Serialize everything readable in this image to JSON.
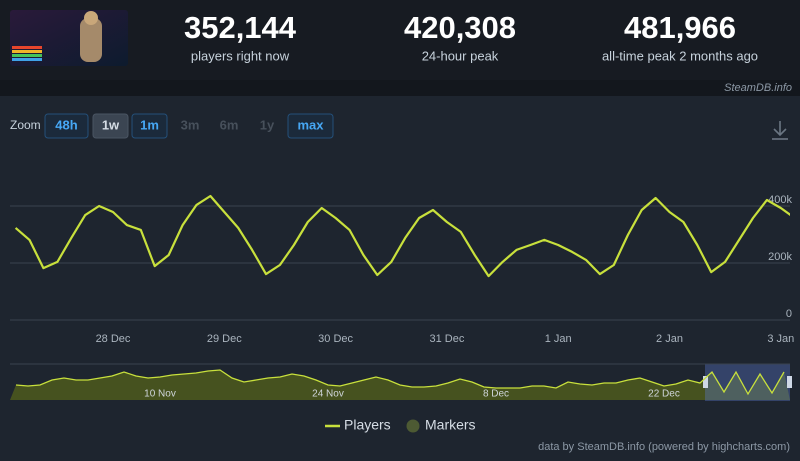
{
  "header": {
    "stats": [
      {
        "value": "352,144",
        "label": "players right now"
      },
      {
        "value": "420,308",
        "label": "24-hour peak"
      },
      {
        "value": "481,966",
        "label": "all-time peak 2 months ago"
      }
    ],
    "source": "SteamDB.info"
  },
  "zoom": {
    "label": "Zoom",
    "buttons": [
      {
        "label": "48h",
        "state": "enabled"
      },
      {
        "label": "1w",
        "state": "active"
      },
      {
        "label": "1m",
        "state": "enabled"
      },
      {
        "label": "3m",
        "state": "disabled"
      },
      {
        "label": "6m",
        "state": "disabled"
      },
      {
        "label": "1y",
        "state": "disabled"
      },
      {
        "label": "max",
        "state": "enabled"
      }
    ]
  },
  "chart_data": {
    "type": "line",
    "categories": [
      null,
      null,
      null,
      null,
      null,
      null,
      null,
      "28 Dec",
      null,
      null,
      null,
      null,
      null,
      null,
      null,
      "29 Dec",
      null,
      null,
      null,
      null,
      null,
      null,
      null,
      "30 Dec",
      null,
      null,
      null,
      null,
      null,
      null,
      null,
      "31 Dec",
      null,
      null,
      null,
      null,
      null,
      null,
      null,
      "1 Jan",
      null,
      null,
      null,
      null,
      null,
      null,
      null,
      "2 Jan",
      null,
      null,
      null,
      null,
      null,
      null,
      null,
      "3 Jan",
      null
    ],
    "series": [
      {
        "name": "Players",
        "color": "#c8e03c",
        "values": [
          323000,
          281000,
          182000,
          204000,
          288000,
          368000,
          400000,
          379000,
          333000,
          316000,
          189000,
          228000,
          333000,
          404000,
          435000,
          379000,
          323000,
          246000,
          161000,
          193000,
          263000,
          344000,
          393000,
          358000,
          316000,
          228000,
          158000,
          204000,
          288000,
          358000,
          386000,
          344000,
          309000,
          228000,
          154000,
          204000,
          246000,
          263000,
          281000,
          263000,
          239000,
          211000,
          161000,
          193000,
          298000,
          386000,
          428000,
          379000,
          344000,
          263000,
          168000,
          204000,
          281000,
          358000,
          421000,
          393000,
          358000
        ]
      }
    ],
    "markers": {
      "name": "Markers",
      "color": "#4d5a33"
    },
    "ylim": [
      0,
      600000
    ],
    "yticks": [
      {
        "value": 0,
        "label": "0"
      },
      {
        "value": 200000,
        "label": "200k"
      },
      {
        "value": 400000,
        "label": "400k"
      }
    ],
    "grid": true,
    "navigator": {
      "type": "area",
      "color": "#c8e03c",
      "fill": "#46521f",
      "ylim": [
        0,
        500000
      ],
      "categories": [
        null,
        null,
        null,
        null,
        null,
        null,
        null,
        null,
        null,
        null,
        null,
        null,
        "10 Nov",
        null,
        null,
        null,
        null,
        null,
        null,
        null,
        null,
        null,
        null,
        null,
        null,
        null,
        "24 Nov",
        null,
        null,
        null,
        null,
        null,
        null,
        null,
        null,
        null,
        null,
        null,
        null,
        null,
        "8 Dec",
        null,
        null,
        null,
        null,
        null,
        null,
        null,
        null,
        null,
        null,
        null,
        null,
        null,
        "22 Dec",
        null,
        null,
        null,
        null,
        null,
        null,
        null,
        null,
        null,
        null
      ],
      "values": [
        214000,
        200000,
        214000,
        286000,
        314000,
        286000,
        286000,
        314000,
        343000,
        400000,
        343000,
        314000,
        329000,
        357000,
        371000,
        386000,
        414000,
        429000,
        314000,
        257000,
        286000,
        314000,
        329000,
        371000,
        343000,
        286000,
        214000,
        200000,
        243000,
        286000,
        329000,
        286000,
        214000,
        186000,
        186000,
        200000,
        243000,
        300000,
        257000,
        186000,
        171000,
        171000,
        171000,
        200000,
        200000,
        171000,
        257000,
        229000,
        214000,
        243000,
        243000,
        286000,
        314000,
        257000,
        200000,
        229000,
        286000,
        243000,
        400000,
        114000,
        400000,
        86000,
        371000,
        100000,
        400000
      ]
    },
    "credit": "data by SteamDB.info (powered by highcharts.com)"
  }
}
